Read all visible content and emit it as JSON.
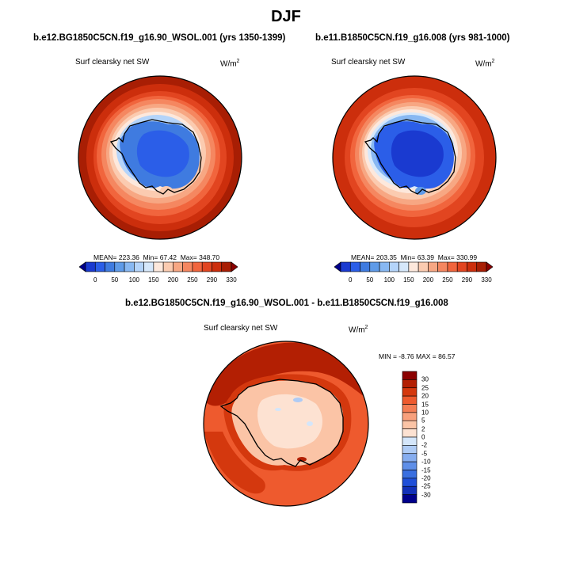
{
  "chart_data": [
    {
      "type": "heatmap",
      "projection": "south-polar-stereographic",
      "figure_title": "DJF",
      "title": "b.e12.BG1850C5CN.f19_g16.90_WSOL.001 (yrs 1350-1399)",
      "variable": "Surf clearsky net SW",
      "units": "W/m",
      "units_exp": "2",
      "stats": {
        "mean_label": "MEAN=",
        "mean": "223.36",
        "min_label": "Min=",
        "min": "67.42",
        "max_label": "Max=",
        "max": "348.70"
      },
      "colorbar": {
        "orientation": "horizontal",
        "ticks": [
          "0",
          "50",
          "100",
          "150",
          "200",
          "250",
          "290",
          "330"
        ],
        "colors": [
          "#00008b",
          "#1a3ad0",
          "#2b5ee8",
          "#3f7be0",
          "#5f9be8",
          "#88b8f2",
          "#b4d4fa",
          "#d6e8fb",
          "#fde8dc",
          "#fbcbb0",
          "#f7a783",
          "#f58760",
          "#f1653d",
          "#e24520",
          "#cc2e0c",
          "#a81e04",
          "#8b0000"
        ]
      }
    },
    {
      "type": "heatmap",
      "projection": "south-polar-stereographic",
      "title": "b.e11.B1850C5CN.f19_g16.008 (yrs 981-1000)",
      "variable": "Surf clearsky net SW",
      "units": "W/m",
      "units_exp": "2",
      "stats": {
        "mean_label": "MEAN=",
        "mean": "203.35",
        "min_label": "Min=",
        "min": "63.39",
        "max_label": "Max=",
        "max": "330.99"
      },
      "colorbar": {
        "orientation": "horizontal",
        "ticks": [
          "0",
          "50",
          "100",
          "150",
          "200",
          "250",
          "290",
          "330"
        ],
        "colors": [
          "#00008b",
          "#1a3ad0",
          "#2b5ee8",
          "#3f7be0",
          "#5f9be8",
          "#88b8f2",
          "#b4d4fa",
          "#d6e8fb",
          "#fde8dc",
          "#fbcbb0",
          "#f7a783",
          "#f58760",
          "#f1653d",
          "#e24520",
          "#cc2e0c",
          "#a81e04",
          "#8b0000"
        ]
      }
    },
    {
      "type": "heatmap",
      "projection": "south-polar-stereographic",
      "title": "b.e12.BG1850C5CN.f19_g16.90_WSOL.001 - b.e11.B1850C5CN.f19_g16.008",
      "variable": "Surf clearsky net SW",
      "units": "W/m",
      "units_exp": "2",
      "stats": {
        "min_label": "MIN =",
        "min": "-8.76",
        "max_label": "MAX =",
        "max": "86.57"
      },
      "colorbar": {
        "orientation": "vertical",
        "ticks": [
          "30",
          "25",
          "20",
          "15",
          "10",
          "5",
          "2",
          "0",
          "-2",
          "-5",
          "-10",
          "-15",
          "-20",
          "-25",
          "-30"
        ],
        "colors": [
          "#8b0000",
          "#b31f03",
          "#d4380e",
          "#ee5a2e",
          "#f47d54",
          "#f8a07c",
          "#fbc4a6",
          "#fde2d2",
          "#d4e6fa",
          "#aecbf5",
          "#86adef",
          "#5f8fe8",
          "#3a6fe0",
          "#1f4fd8",
          "#1230b8",
          "#00008b"
        ]
      }
    }
  ]
}
